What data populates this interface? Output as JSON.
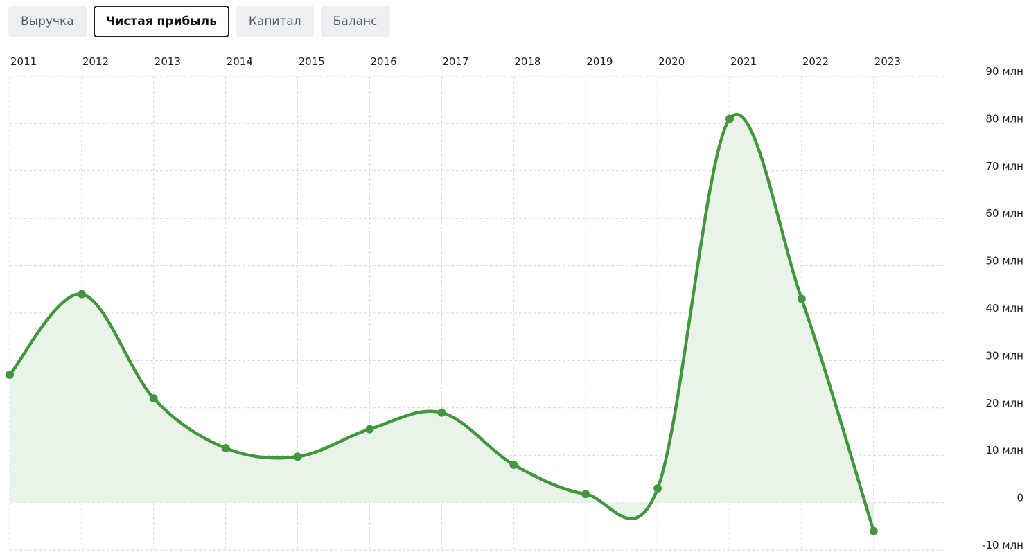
{
  "tabs": [
    {
      "label": "Выручка",
      "active": false
    },
    {
      "label": "Чистая прибыль",
      "active": true
    },
    {
      "label": "Капитал",
      "active": false
    },
    {
      "label": "Баланс",
      "active": false
    }
  ],
  "chart_data": {
    "type": "area",
    "title": "",
    "xlabel": "",
    "ylabel": "",
    "x": [
      "2011",
      "2012",
      "2013",
      "2014",
      "2015",
      "2016",
      "2017",
      "2018",
      "2019",
      "2020",
      "2021",
      "2022",
      "2023"
    ],
    "series": [
      {
        "values": [
          27,
          44,
          22,
          11.5,
          9.7,
          15.5,
          19,
          8,
          1.8,
          3,
          81,
          43,
          -6
        ]
      }
    ],
    "ylim": [
      -10,
      90
    ],
    "yticks": [
      90,
      80,
      70,
      60,
      50,
      40,
      30,
      20,
      10,
      0,
      -10
    ],
    "ytick_labels": [
      "90 млн",
      "80 млн",
      "70 млн",
      "60 млн",
      "50 млн",
      "40 млн",
      "30 млн",
      "20 млн",
      "10 млн",
      "0",
      "-10 млн"
    ],
    "x_axis_position": "top",
    "y_axis_position": "right",
    "grid": true,
    "legend": "none",
    "colors": {
      "line": "#43963f",
      "fill": "#e9f4e8",
      "grid": "#d9d9d9"
    }
  }
}
